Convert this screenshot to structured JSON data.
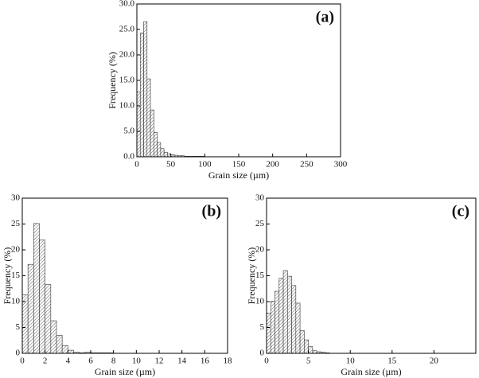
{
  "chart_data": [
    {
      "type": "histogram",
      "annotation": "(a)",
      "x_label": "Grain size (µm)",
      "y_label": "Frequency (%)",
      "color": "#333333",
      "bins": [
        0,
        5,
        10,
        15,
        20,
        25,
        30,
        35,
        40,
        45,
        50,
        55,
        60,
        65,
        70,
        75,
        80,
        85,
        90,
        95,
        100
      ],
      "values": [
        12.7,
        24.3,
        26.5,
        15.3,
        9.2,
        4.8,
        2.8,
        1.6,
        0.9,
        0.6,
        0.4,
        0.3,
        0.2,
        0.2,
        0.1,
        0.1,
        0.1,
        0.1,
        0.1,
        0.1
      ],
      "xlim": [
        0,
        300
      ],
      "xticks": [
        0,
        50,
        100,
        150,
        200,
        250,
        300
      ],
      "ylim": [
        0,
        30
      ],
      "yticks": [
        {
          "value": 0,
          "label": "0.0"
        },
        {
          "value": 5,
          "label": "5.0"
        },
        {
          "value": 10,
          "label": "10.0"
        },
        {
          "value": 15,
          "label": "15.0"
        },
        {
          "value": 20,
          "label": "20.0"
        },
        {
          "value": 25,
          "label": "25.0"
        },
        {
          "value": 30,
          "label": "30.0"
        }
      ]
    },
    {
      "type": "histogram",
      "annotation": "(b)",
      "x_label": "Grain size (µm)",
      "y_label": "Frequency (%)",
      "color": "#333333",
      "bins": [
        0,
        0.5,
        1,
        1.5,
        2,
        2.5,
        3,
        3.5,
        4,
        4.5,
        5,
        5.5,
        6,
        6.5,
        7,
        7.5,
        8
      ],
      "values": [
        11.3,
        17.2,
        25.1,
        21.9,
        13.3,
        6.3,
        3.5,
        1.5,
        0.6,
        0.2,
        0.1,
        0.2,
        0.1,
        0.1,
        0.1,
        0.1
      ],
      "xlim": [
        0,
        18
      ],
      "xticks": [
        0,
        2,
        4,
        6,
        8,
        10,
        12,
        14,
        16,
        18
      ],
      "ylim": [
        0,
        30
      ],
      "yticks": [
        0,
        5,
        10,
        15,
        20,
        25,
        30
      ]
    },
    {
      "type": "histogram",
      "annotation": "(c)",
      "x_label": "Grain size (µm)",
      "y_label": "Frequency (%)",
      "color": "#333333",
      "bins": [
        0,
        0.5,
        1,
        1.5,
        2,
        2.5,
        3,
        3.5,
        4,
        4.5,
        5,
        5.5,
        6,
        6.5,
        7,
        7.5
      ],
      "values": [
        7.8,
        10.1,
        12.0,
        14.5,
        16.0,
        14.9,
        13.1,
        9.7,
        4.4,
        2.6,
        1.3,
        0.5,
        0.3,
        0.2,
        0.1
      ],
      "xlim": [
        0,
        25
      ],
      "xticks": [
        0,
        5,
        10,
        15,
        20
      ],
      "ylim": [
        0,
        30
      ],
      "yticks": [
        0,
        5,
        10,
        15,
        20,
        25,
        30
      ]
    }
  ]
}
